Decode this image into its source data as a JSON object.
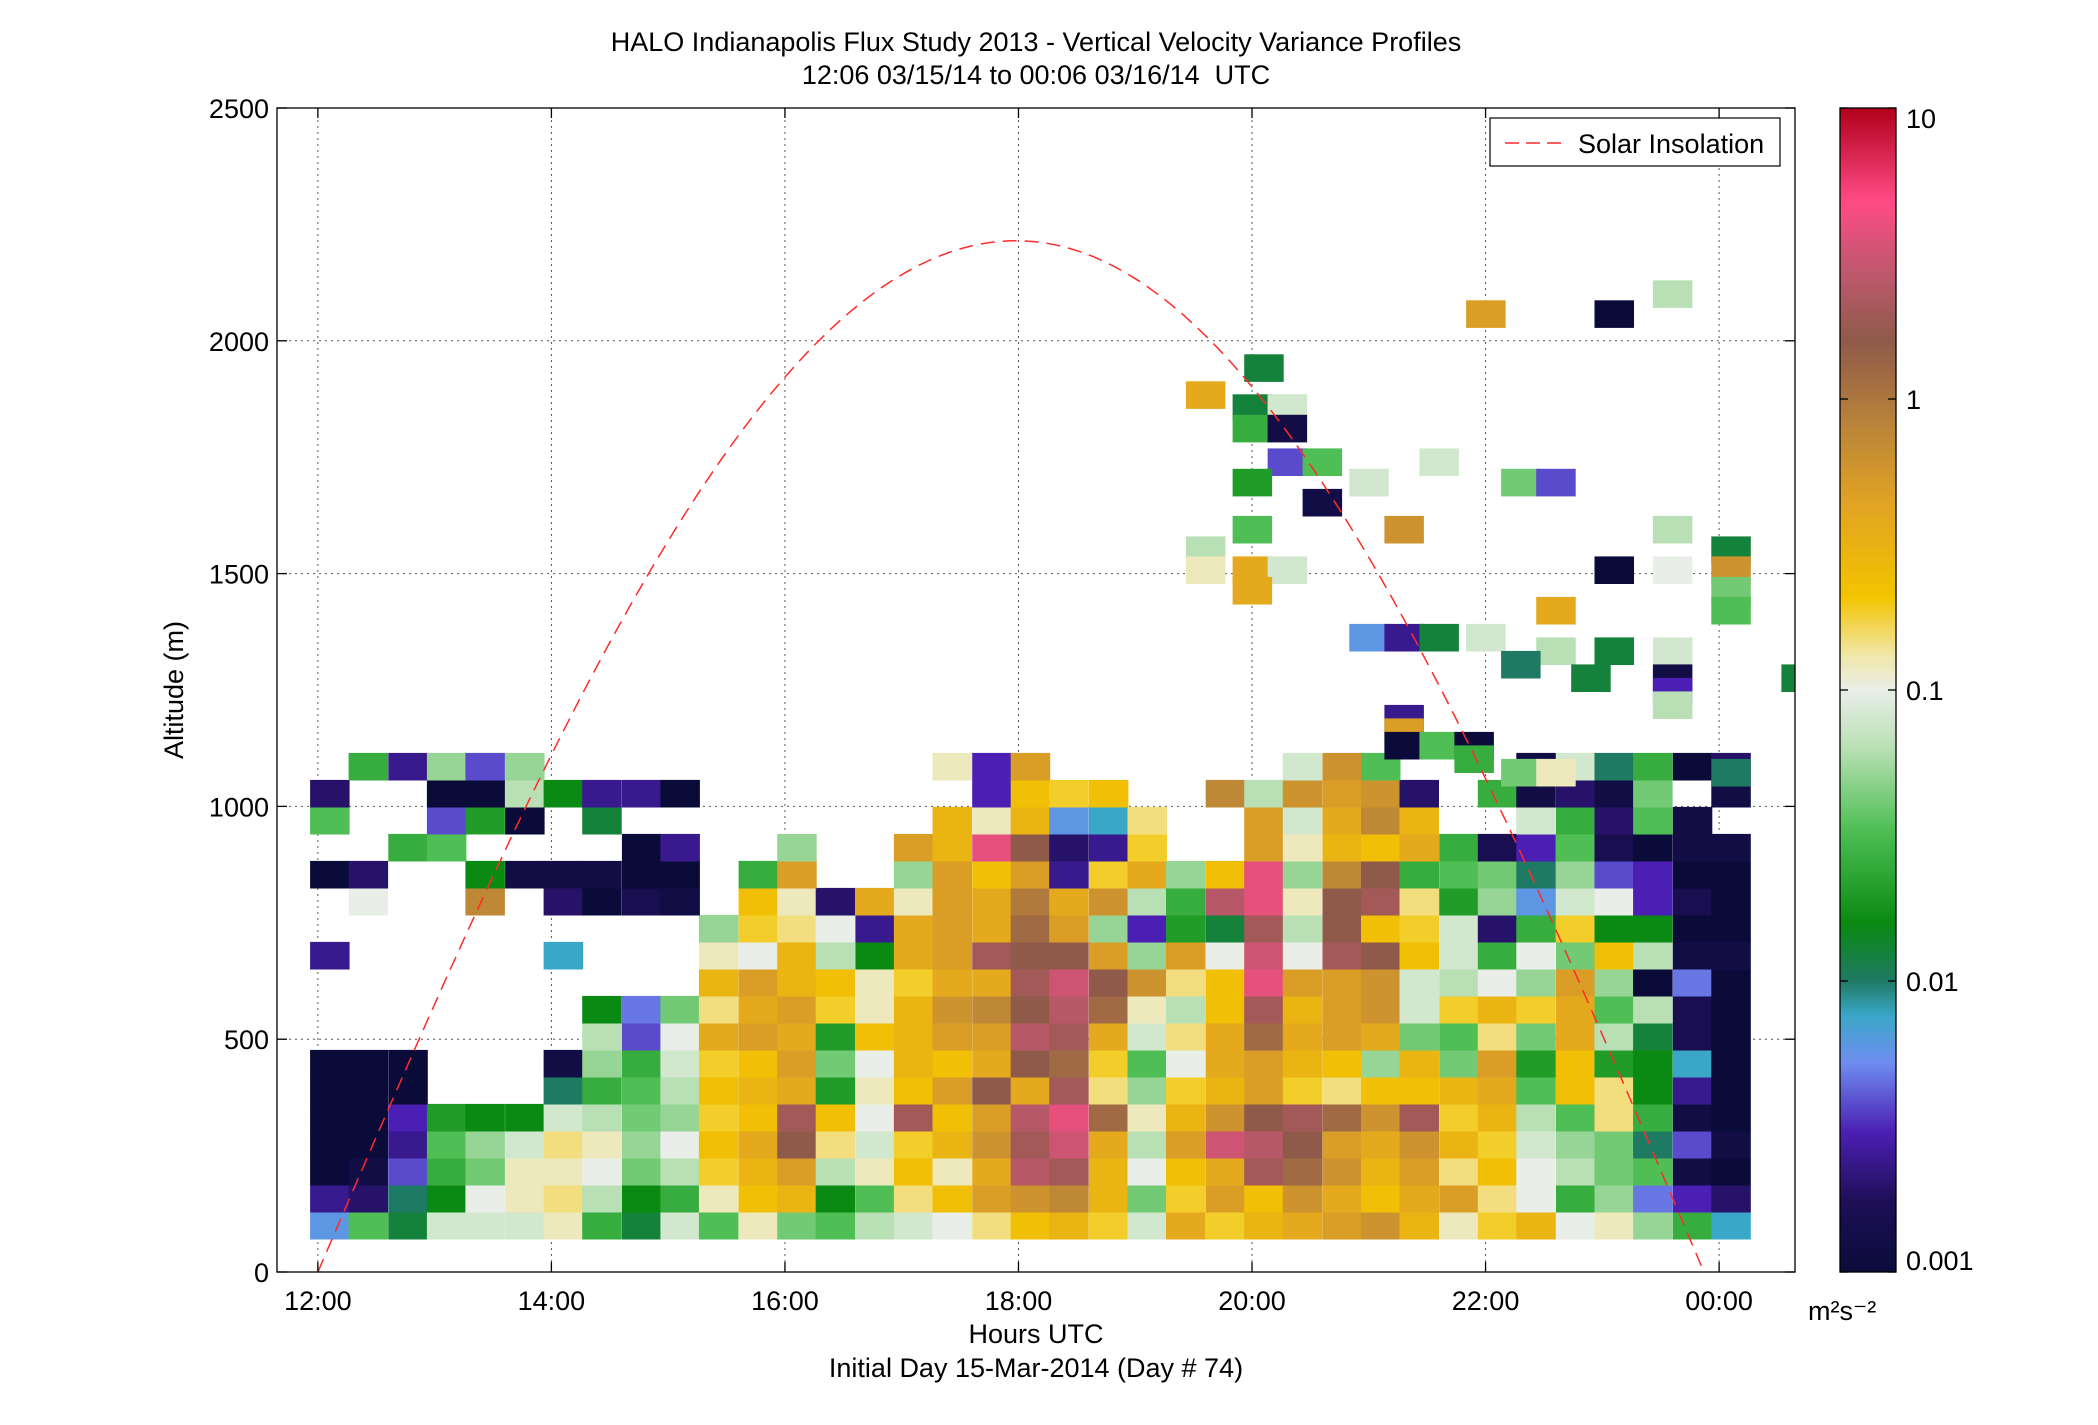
{
  "chart_data": {
    "type": "heatmap",
    "title": "HALO Indianapolis Flux Study 2013 - Vertical Velocity Variance Profiles",
    "subtitle": "12:06 03/15/14 to 00:06 03/16/14  UTC",
    "xlabel": "Hours UTC",
    "xlabel2": "Initial Day 15-Mar-2014 (Day # 74)",
    "ylabel": "Altitude (m)",
    "xlim": [
      11.65,
      24.65
    ],
    "ylim": [
      0,
      2500
    ],
    "x_ticks": [
      12,
      14,
      16,
      18,
      20,
      22,
      24
    ],
    "x_tick_labels": [
      "12:00",
      "14:00",
      "16:00",
      "18:00",
      "20:00",
      "22:00",
      "00:00"
    ],
    "y_ticks": [
      0,
      500,
      1000,
      1500,
      2000,
      2500
    ],
    "y_tick_labels": [
      "0",
      "500",
      "1000",
      "1500",
      "2000",
      "2500"
    ],
    "grid": true,
    "legend": {
      "position": "top-right",
      "entries": [
        "Solar Insolation"
      ]
    },
    "colorbar": {
      "scale": "log",
      "range": [
        0.001,
        10
      ],
      "ticks": [
        0.001,
        0.01,
        0.1,
        1,
        10
      ],
      "tick_labels": [
        "0.001",
        "0.01",
        "0.1",
        "1",
        "10"
      ],
      "unit_label": "m²s⁻²"
    },
    "cell_size": {
      "hours": 0.3333,
      "meters": 58
    },
    "x_hours": [
      12.1,
      12.43,
      12.77,
      13.1,
      13.43,
      13.77,
      14.1,
      14.43,
      14.77,
      15.1,
      15.43,
      15.77,
      16.1,
      16.43,
      16.77,
      17.1,
      17.43,
      17.77,
      18.1,
      18.43,
      18.77,
      19.1,
      19.43,
      19.77,
      20.1,
      20.43,
      20.77,
      21.1,
      21.43,
      21.77,
      22.1,
      22.43,
      22.77,
      23.1,
      23.43,
      23.77,
      24.1
    ],
    "altitudes_m": [
      100,
      158,
      216,
      274,
      332,
      390,
      448,
      506,
      564,
      622,
      680,
      738,
      796,
      854,
      912,
      970,
      1028,
      1086,
      1144,
      1202,
      1260,
      1318
    ],
    "variance_log10_grid": [
      [
        -2.2,
        -1.5,
        -1.9,
        -1.1,
        -1.1,
        -1.1,
        -0.9,
        -1.6,
        -1.9,
        -1.1,
        -1.5,
        -0.9,
        -1.4,
        -1.5,
        -1.2,
        -1.1,
        -1.0,
        -0.8,
        -0.6,
        -0.5,
        -0.7,
        -1.1,
        -0.4,
        -0.7,
        -0.5,
        -0.4,
        -0.3,
        -0.2,
        -0.5,
        -0.9,
        -0.7,
        -0.5,
        -1.0,
        -0.9,
        -1.3,
        -1.6,
        -2.1
      ],
      [
        -2.6,
        -2.7,
        -2.0,
        -1.8,
        -1.0,
        -0.9,
        -0.8,
        -1.2,
        -1.8,
        -1.6,
        -0.9,
        -0.6,
        -0.5,
        -1.8,
        -1.5,
        -0.8,
        -0.6,
        -0.3,
        -0.2,
        -0.1,
        -0.5,
        -1.4,
        -0.7,
        -0.3,
        -0.6,
        -0.2,
        -0.4,
        -0.6,
        -0.4,
        -0.3,
        -0.8,
        -1.0,
        -1.6,
        -1.3,
        -2.3,
        -2.5,
        -2.7
      ],
      [
        -3.0,
        -2.9,
        -2.4,
        -1.6,
        -1.4,
        -0.9,
        -0.9,
        -1.0,
        -1.4,
        -1.2,
        -0.7,
        -0.5,
        -0.3,
        -1.2,
        -0.9,
        -0.6,
        -0.9,
        -0.4,
        0.4,
        0.3,
        -0.5,
        -1.0,
        -0.6,
        -0.4,
        0.3,
        0.1,
        -0.2,
        -0.5,
        -0.3,
        -0.8,
        -0.6,
        -1.0,
        -1.2,
        -1.4,
        -1.5,
        -2.9,
        -3.0
      ],
      [
        -3.0,
        -3.0,
        -2.6,
        -1.5,
        -1.3,
        -1.1,
        -0.8,
        -0.9,
        -1.3,
        -1.0,
        -0.6,
        -0.4,
        0.2,
        -0.8,
        -1.1,
        -0.7,
        -0.5,
        -0.2,
        0.3,
        0.5,
        -0.4,
        -1.2,
        -0.3,
        0.5,
        0.4,
        0.2,
        -0.3,
        -0.4,
        -0.2,
        -0.5,
        -0.7,
        -1.1,
        -1.3,
        -1.4,
        -2.0,
        -2.4,
        -2.9
      ],
      [
        -3.0,
        -3.0,
        -2.5,
        -1.7,
        -1.8,
        -1.8,
        -1.1,
        -1.2,
        -1.4,
        -1.3,
        -0.7,
        -0.6,
        0.3,
        -0.6,
        -1.0,
        0.3,
        -0.6,
        -0.3,
        0.4,
        0.6,
        0.1,
        -0.9,
        -0.5,
        -0.2,
        0.2,
        0.3,
        0.1,
        -0.2,
        0.3,
        -0.7,
        -0.5,
        -1.2,
        -1.5,
        -0.8,
        -1.6,
        -2.9,
        -3.0
      ],
      [
        -3.0,
        -3.0,
        -3.0,
        null,
        null,
        null,
        -2.0,
        -1.6,
        -1.5,
        -1.2,
        -0.6,
        -0.5,
        -0.4,
        -1.7,
        -0.9,
        -0.6,
        -0.3,
        0.2,
        -0.4,
        0.3,
        -0.8,
        -1.3,
        -0.7,
        -0.5,
        -0.3,
        -0.7,
        -0.8,
        -0.6,
        -0.6,
        -0.5,
        -0.4,
        -1.5,
        -0.6,
        -0.8,
        -1.8,
        -2.6,
        -3.0
      ],
      [
        -3.0,
        -3.0,
        -3.0,
        null,
        null,
        null,
        -2.9,
        -1.3,
        -1.6,
        -1.1,
        -0.7,
        -0.6,
        -0.3,
        -1.4,
        -1.0,
        -0.5,
        -0.6,
        -0.4,
        0.2,
        0.1,
        -0.7,
        -1.5,
        -1.0,
        -0.4,
        -0.3,
        -0.5,
        -0.6,
        -1.3,
        -0.5,
        -1.4,
        -0.3,
        -1.7,
        -0.6,
        -1.7,
        -1.8,
        -2.1,
        -3.0
      ],
      [
        null,
        null,
        null,
        null,
        null,
        null,
        null,
        -1.2,
        -2.4,
        -1.0,
        -0.4,
        -0.3,
        -0.4,
        -1.7,
        -0.6,
        -0.5,
        -0.3,
        -0.3,
        0.4,
        0.3,
        -0.4,
        -1.1,
        -0.8,
        -0.4,
        0.1,
        -0.4,
        -0.3,
        -0.4,
        -1.4,
        -1.5,
        -0.8,
        -1.4,
        -0.4,
        -1.2,
        -1.9,
        -2.8,
        -3.0
      ],
      [
        null,
        null,
        null,
        null,
        null,
        null,
        null,
        -1.8,
        -2.3,
        -1.4,
        -0.8,
        -0.4,
        -0.3,
        -0.7,
        -0.9,
        -0.5,
        -0.2,
        -0.1,
        0.2,
        0.4,
        0.1,
        -0.9,
        -1.2,
        -0.6,
        0.3,
        -0.5,
        -0.3,
        -0.2,
        -1.1,
        -0.7,
        -0.5,
        -0.7,
        -0.4,
        -1.5,
        -1.2,
        -2.8,
        -3.0
      ],
      [
        null,
        null,
        null,
        null,
        null,
        null,
        null,
        null,
        null,
        null,
        -0.5,
        -0.3,
        -0.5,
        -0.6,
        -0.9,
        -0.7,
        -0.4,
        -0.4,
        0.3,
        0.5,
        0.2,
        -0.2,
        -0.8,
        -0.6,
        0.6,
        -0.3,
        -0.3,
        -0.2,
        -1.1,
        -1.2,
        -1.0,
        -1.3,
        -0.3,
        -1.3,
        -3.0,
        -2.3,
        -3.0
      ],
      [
        -2.6,
        null,
        null,
        null,
        null,
        null,
        -2.1,
        null,
        null,
        null,
        -0.9,
        -1.0,
        -0.5,
        -1.2,
        -1.8,
        -0.4,
        -0.3,
        0.3,
        0.2,
        0.2,
        -0.3,
        -1.3,
        -0.3,
        -1.0,
        0.5,
        -1.0,
        0.3,
        0.2,
        -0.6,
        -1.1,
        -1.6,
        -1.0,
        -1.4,
        -0.6,
        -1.2,
        -2.9,
        -2.9
      ],
      [
        null,
        null,
        null,
        null,
        null,
        null,
        null,
        null,
        null,
        null,
        -1.3,
        -0.7,
        -0.8,
        -1.0,
        -2.6,
        -0.4,
        -0.3,
        -0.4,
        0.1,
        -0.3,
        -1.3,
        -2.5,
        -1.7,
        -1.9,
        0.3,
        -1.2,
        0.2,
        -0.6,
        -0.7,
        -1.1,
        -2.7,
        -1.6,
        -0.7,
        -1.8,
        -1.8,
        -3.0,
        -3.0
      ],
      [
        null,
        -1.0,
        null,
        null,
        -0.1,
        null,
        -2.7,
        -3.0,
        -2.8,
        -2.9,
        null,
        -0.6,
        -0.9,
        -2.7,
        -0.4,
        -0.9,
        -0.3,
        -0.4,
        0.0,
        -0.4,
        -0.2,
        -1.2,
        -1.6,
        0.4,
        0.6,
        -0.9,
        0.2,
        0.3,
        -0.8,
        -1.7,
        -1.3,
        -2.2,
        -1.1,
        -1.0,
        -2.5,
        -2.8,
        -3.0
      ],
      [
        -3.0,
        -2.7,
        null,
        null,
        -1.8,
        -2.9,
        -2.9,
        -2.9,
        -3.0,
        -3.0,
        null,
        -1.6,
        -0.3,
        null,
        null,
        -1.3,
        -0.3,
        -0.6,
        -0.3,
        -2.6,
        -0.7,
        -0.4,
        -1.3,
        -0.6,
        0.6,
        -1.3,
        -0.1,
        0.2,
        -1.6,
        -1.5,
        -1.4,
        -2.0,
        -1.3,
        -2.4,
        -2.5,
        -3.0,
        -3.0
      ],
      [
        null,
        null,
        -1.6,
        -1.5,
        null,
        null,
        null,
        null,
        -3.0,
        -2.6,
        null,
        null,
        -1.3,
        null,
        null,
        -0.3,
        -0.5,
        0.6,
        0.2,
        -2.7,
        -2.6,
        -0.7,
        null,
        null,
        -0.3,
        -0.9,
        -0.5,
        -0.6,
        -0.4,
        -1.6,
        -2.8,
        -2.5,
        -1.5,
        -2.8,
        -3.0,
        -2.9,
        -2.9
      ],
      [
        -1.5,
        null,
        null,
        -2.4,
        -1.7,
        -3.0,
        null,
        -1.9,
        null,
        null,
        null,
        null,
        null,
        null,
        null,
        null,
        -0.5,
        -0.9,
        -0.5,
        -2.2,
        -2.1,
        -0.8,
        null,
        null,
        -0.3,
        -1.1,
        -0.4,
        -0.1,
        -0.5,
        null,
        null,
        -1.1,
        -1.6,
        -2.7,
        -1.5,
        -2.9,
        null
      ],
      [
        -2.7,
        null,
        null,
        -3.0,
        -3.0,
        -1.2,
        -1.8,
        -2.6,
        -2.6,
        -3.0,
        null,
        null,
        null,
        null,
        null,
        null,
        null,
        -2.5,
        -0.6,
        -0.7,
        -0.6,
        null,
        null,
        -0.1,
        -1.2,
        -0.2,
        -0.3,
        -0.2,
        -2.7,
        null,
        -1.6,
        -2.9,
        -2.7,
        -2.9,
        -1.4,
        null,
        -2.9
      ],
      [
        null,
        -1.6,
        -2.6,
        -1.3,
        -2.4,
        -1.3,
        null,
        null,
        null,
        null,
        null,
        null,
        null,
        null,
        null,
        null,
        -0.9,
        -2.5,
        -0.3,
        null,
        null,
        null,
        null,
        null,
        null,
        -1.1,
        -0.2,
        -1.5,
        null,
        null,
        null,
        -2.9,
        -1.1,
        -2.0,
        -1.6,
        -3.0,
        -2.7
      ]
    ],
    "upper_cells": [
      [
        22.0,
        2058,
        -0.3
      ],
      [
        23.1,
        2058,
        -3.0
      ],
      [
        23.6,
        2101,
        -1.2
      ],
      [
        20.1,
        1942,
        -1.9
      ],
      [
        19.6,
        1884,
        -0.4
      ],
      [
        20.0,
        1856,
        -1.9
      ],
      [
        20.3,
        1856,
        -1.1
      ],
      [
        20.0,
        1812,
        -1.6
      ],
      [
        20.3,
        1812,
        -2.9
      ],
      [
        20.3,
        1740,
        -2.4
      ],
      [
        20.6,
        1740,
        -1.5
      ],
      [
        20.0,
        1696,
        -1.7
      ],
      [
        21.0,
        1696,
        -1.1
      ],
      [
        21.6,
        1740,
        -1.1
      ],
      [
        22.3,
        1696,
        -1.4
      ],
      [
        22.6,
        1696,
        -2.4
      ],
      [
        20.6,
        1653,
        -2.9
      ],
      [
        20.0,
        1595,
        -1.5
      ],
      [
        21.3,
        1595,
        -0.2
      ],
      [
        19.6,
        1551,
        -1.2
      ],
      [
        23.6,
        1595,
        -1.2
      ],
      [
        24.1,
        1551,
        -1.9
      ],
      [
        19.6,
        1508,
        -0.9
      ],
      [
        20.0,
        1508,
        -0.4
      ],
      [
        20.3,
        1508,
        -1.1
      ],
      [
        23.1,
        1508,
        -3.0
      ],
      [
        23.6,
        1508,
        -1.0
      ],
      [
        24.1,
        1508,
        -0.2
      ],
      [
        24.1,
        1464,
        -1.4
      ],
      [
        20.0,
        1464,
        -0.4
      ],
      [
        24.1,
        1421,
        -1.5
      ],
      [
        22.6,
        1421,
        -0.4
      ],
      [
        21.0,
        1363,
        -2.2
      ],
      [
        21.3,
        1363,
        -2.6
      ],
      [
        21.6,
        1363,
        -1.9
      ],
      [
        22.0,
        1363,
        -1.1
      ],
      [
        22.6,
        1334,
        -1.2
      ],
      [
        23.1,
        1334,
        -1.9
      ],
      [
        23.6,
        1334,
        -1.1
      ],
      [
        22.3,
        1305,
        -2.0
      ],
      [
        22.9,
        1276,
        -1.9
      ],
      [
        23.6,
        1276,
        -2.9
      ],
      [
        24.7,
        1276,
        -1.9
      ],
      [
        23.6,
        1247,
        -2.5
      ],
      [
        23.6,
        1218,
        -1.2
      ],
      [
        21.3,
        1189,
        -2.6
      ],
      [
        21.3,
        1160,
        -0.3
      ],
      [
        21.3,
        1131,
        -3.0
      ],
      [
        21.6,
        1131,
        -1.5
      ],
      [
        21.9,
        1131,
        -3.0
      ],
      [
        21.9,
        1102,
        -1.6
      ],
      [
        22.3,
        1073,
        -1.4
      ],
      [
        22.6,
        1073,
        -0.9
      ],
      [
        24.1,
        1073,
        -2.0
      ]
    ],
    "solar_insolation_curve": {
      "peak_hour": 17.98,
      "peak_altitude_m": 2215,
      "start_hour": 12.0,
      "end_hour": 23.87
    }
  }
}
